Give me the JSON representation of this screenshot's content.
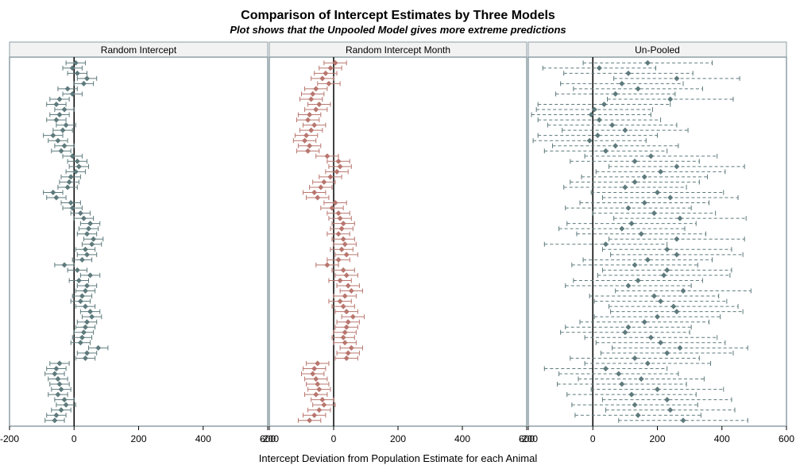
{
  "title": "Comparison of Intercept Estimates by Three Models",
  "subtitle": "Plot shows that the Unpooled Model gives more extreme predictions",
  "xlabel": "Intercept Deviation from Population Estimate for each Animal",
  "panel_labels": [
    "Random Intercept",
    "Random Intercept Month",
    "Un-Pooled"
  ],
  "x_ticks": [
    "-200",
    "0",
    "200",
    "400",
    "600"
  ],
  "colors": {
    "random_intercept": "#5e7a7c",
    "random_intercept_month": "#b8766e",
    "unpooled": "#5e7a7c",
    "zero_line": "#000000",
    "panel_border": "#8e9fa6",
    "strip_fill": "#f2f2f2"
  },
  "chart_data": {
    "type": "scatter",
    "layout": "three-panel dot plot with error bars",
    "xlim": [
      -200,
      600
    ],
    "reference_line": 0,
    "n_animals": 70,
    "series": [
      {
        "name": "Random Intercept",
        "error_style": "solid",
        "values": [
          5,
          -5,
          10,
          40,
          30,
          -20,
          -5,
          -45,
          -55,
          -30,
          -45,
          -55,
          -25,
          -35,
          -65,
          -50,
          -30,
          -40,
          -5,
          10,
          15,
          5,
          -10,
          -15,
          -20,
          -65,
          -55,
          -10,
          -5,
          20,
          30,
          50,
          45,
          40,
          60,
          55,
          35,
          40,
          25,
          -30,
          10,
          50,
          15,
          40,
          35,
          25,
          20,
          35,
          50,
          55,
          40,
          35,
          30,
          25,
          20,
          75,
          40,
          35,
          -45,
          -55,
          -60,
          -50,
          -45,
          -40,
          -50,
          -30,
          -25,
          -40,
          -55,
          -60
        ],
        "half_width": [
          30,
          30,
          30,
          30,
          30,
          30,
          30,
          30,
          30,
          30,
          30,
          30,
          30,
          30,
          30,
          30,
          30,
          30,
          30,
          30,
          30,
          30,
          30,
          30,
          30,
          30,
          30,
          30,
          30,
          30,
          30,
          30,
          30,
          30,
          30,
          30,
          30,
          30,
          30,
          30,
          30,
          30,
          30,
          30,
          30,
          30,
          30,
          30,
          30,
          30,
          30,
          30,
          30,
          30,
          30,
          30,
          30,
          30,
          30,
          30,
          30,
          30,
          30,
          30,
          30,
          30,
          30,
          30,
          30,
          30
        ]
      },
      {
        "name": "Random Intercept Month",
        "error_style": "solid",
        "values": [
          5,
          -10,
          -25,
          -35,
          -15,
          -55,
          -65,
          -70,
          -45,
          -55,
          -75,
          -80,
          -60,
          -70,
          -85,
          -90,
          -75,
          -80,
          -20,
          15,
          20,
          10,
          -10,
          -30,
          -40,
          -60,
          -50,
          5,
          -5,
          15,
          20,
          30,
          25,
          15,
          30,
          35,
          25,
          40,
          15,
          -20,
          30,
          40,
          20,
          45,
          55,
          35,
          20,
          30,
          40,
          60,
          45,
          40,
          35,
          30,
          35,
          55,
          45,
          40,
          -50,
          -60,
          -65,
          -55,
          -50,
          -45,
          -55,
          -35,
          -30,
          -45,
          -60,
          -75
        ],
        "half_width": [
          35,
          35,
          35,
          35,
          35,
          35,
          35,
          35,
          35,
          35,
          35,
          35,
          35,
          35,
          35,
          35,
          35,
          35,
          35,
          35,
          35,
          35,
          35,
          35,
          35,
          35,
          35,
          35,
          35,
          35,
          35,
          35,
          35,
          35,
          35,
          35,
          35,
          35,
          35,
          35,
          35,
          35,
          35,
          35,
          35,
          35,
          35,
          35,
          35,
          35,
          35,
          35,
          35,
          35,
          35,
          35,
          35,
          35,
          35,
          35,
          35,
          35,
          35,
          35,
          35,
          35,
          35,
          35,
          35,
          35
        ]
      },
      {
        "name": "Un-Pooled",
        "error_style": "dashed",
        "values": [
          170,
          20,
          110,
          260,
          90,
          140,
          70,
          240,
          35,
          5,
          -5,
          20,
          60,
          100,
          15,
          -10,
          70,
          40,
          180,
          130,
          260,
          210,
          160,
          130,
          100,
          200,
          240,
          160,
          110,
          190,
          270,
          120,
          90,
          150,
          260,
          40,
          230,
          260,
          170,
          130,
          230,
          220,
          140,
          110,
          280,
          190,
          210,
          250,
          260,
          200,
          160,
          110,
          100,
          180,
          210,
          270,
          230,
          130,
          170,
          40,
          80,
          150,
          90,
          200,
          120,
          230,
          130,
          240,
          140,
          280
        ],
        "half_width": [
          200,
          175,
          200,
          195,
          190,
          200,
          185,
          195,
          205,
          180,
          185,
          190,
          200,
          195,
          185,
          175,
          195,
          190,
          205,
          200,
          210,
          200,
          195,
          200,
          190,
          205,
          210,
          200,
          195,
          190,
          205,
          200,
          195,
          200,
          210,
          190,
          200,
          205,
          200,
          195,
          200,
          205,
          200,
          195,
          210,
          200,
          205,
          200,
          205,
          195,
          200,
          195,
          200,
          205,
          200,
          210,
          205,
          200,
          195,
          190,
          185,
          195,
          200,
          205,
          200,
          200,
          195,
          200,
          195,
          200
        ]
      }
    ]
  }
}
